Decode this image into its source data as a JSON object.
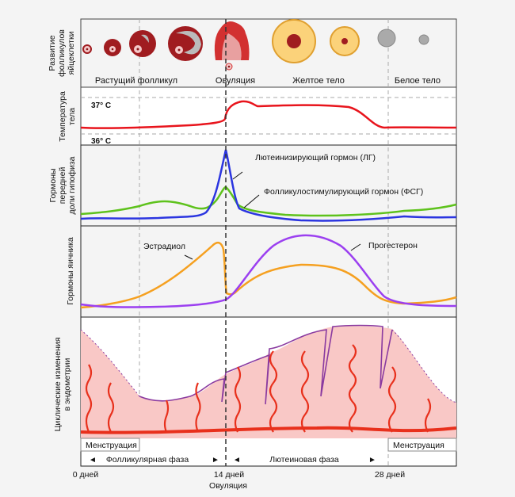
{
  "panels": {
    "follicle": {
      "ylabel": [
        "Развитие",
        "фолликулов",
        "яйцеклетки"
      ],
      "stages": [
        "Растущий фолликул",
        "Овуляция",
        "Желтое тело",
        "Белое тело"
      ]
    },
    "temperature": {
      "ylabel": [
        "Температура",
        "тела"
      ],
      "high": "37° C",
      "low": "36° C"
    },
    "pituitary": {
      "ylabel": [
        "Гормоны",
        "передней",
        "доли гипофиза"
      ],
      "lh": "Лютеинизирующий гормон (ЛГ)",
      "fsh": "Фолликулостимулирующий гормон (ФСГ)"
    },
    "ovarian": {
      "ylabel": [
        "Гормоны яичника"
      ],
      "estradiol": "Эстрадиол",
      "progesterone": "Прогестерон"
    },
    "endometrium": {
      "ylabel": [
        "Циклические изменения",
        "в эндометрии"
      ],
      "menstruation_left": "Менструация",
      "menstruation_right": "Менструация",
      "follicular_phase": "Фолликулярная фаза",
      "luteal_phase": "Лютеиновая фаза"
    }
  },
  "x_axis": {
    "ticks": [
      "0 дней",
      "14 дней",
      "28 дней"
    ],
    "ovulation": "Овуляция"
  },
  "colors": {
    "temperature": "#e8141c",
    "lh": "#2b35e0",
    "fsh": "#5ec21c",
    "estradiol": "#f5a020",
    "progesterone": "#9b3ff0",
    "endometrium": "#f9c8c6",
    "vessel": "#e8301c",
    "gland": "#8a3aa0"
  }
}
